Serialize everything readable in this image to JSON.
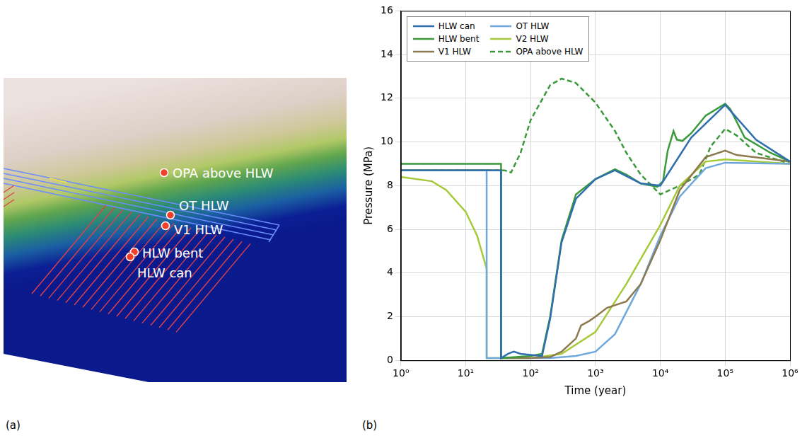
{
  "panel_a": {
    "label": "(a)",
    "points": [
      "OPA above HLW",
      "OT HLW",
      "V1 HLW",
      "HLW bent",
      "HLW can"
    ]
  },
  "panel_b": {
    "label": "(b)"
  },
  "chart_data": {
    "type": "line",
    "x_label": "Time (year)",
    "y_label": "Pressure (MPa)",
    "log": "x",
    "grid": true,
    "legend": "upper left",
    "xlim": [
      1,
      1000000
    ],
    "xticks": [
      {
        "value": 1,
        "label": "10⁰"
      },
      {
        "value": 10,
        "label": "10¹"
      },
      {
        "value": 100,
        "label": "10²"
      },
      {
        "value": 1000,
        "label": "10³"
      },
      {
        "value": 10000,
        "label": "10⁴"
      },
      {
        "value": 100000,
        "label": "10⁵"
      },
      {
        "value": 1000000,
        "label": "10⁶"
      }
    ],
    "ylim": [
      0,
      16
    ],
    "yticks": [
      0,
      2,
      4,
      6,
      8,
      10,
      12,
      14,
      16
    ],
    "series": [
      {
        "name": "HLW can",
        "color": "#2f6fae",
        "line_style": "solid",
        "x": [
          1,
          35,
          35,
          45,
          55,
          70,
          100,
          150,
          200,
          300,
          500,
          1000,
          2000,
          5000,
          10000,
          30000,
          100000,
          300000,
          1000000
        ],
        "values": [
          8.7,
          8.7,
          0.1,
          0.3,
          0.4,
          0.3,
          0.25,
          0.2,
          1.9,
          5.4,
          7.4,
          8.3,
          8.7,
          8.1,
          8.0,
          10.2,
          11.7,
          10.1,
          9.1
        ]
      },
      {
        "name": "HLW bent",
        "color": "#3a9a3a",
        "line_style": "solid",
        "x": [
          1,
          35,
          35,
          60,
          100,
          150,
          200,
          300,
          500,
          1000,
          2000,
          3000,
          5000,
          9000,
          11000,
          13000,
          16000,
          18000,
          22000,
          30000,
          50000,
          100000,
          120000,
          200000,
          500000,
          1000000
        ],
        "values": [
          9.0,
          9.0,
          0.1,
          0.15,
          0.2,
          0.3,
          2.0,
          5.5,
          7.6,
          8.3,
          8.75,
          8.5,
          8.1,
          7.95,
          8.2,
          9.6,
          10.5,
          10.1,
          10.05,
          10.4,
          11.2,
          11.75,
          11.5,
          10.2,
          9.5,
          9.1
        ]
      },
      {
        "name": "V1 HLW",
        "color": "#8c7a4e",
        "line_style": "solid",
        "x": [
          1,
          35,
          35,
          100,
          200,
          300,
          500,
          600,
          800,
          1000,
          1500,
          3000,
          5000,
          10000,
          20000,
          50000,
          100000,
          150000,
          1000000
        ],
        "values": [
          8.7,
          8.7,
          0.1,
          0.1,
          0.15,
          0.4,
          1.0,
          1.6,
          1.8,
          2.0,
          2.4,
          2.7,
          3.5,
          5.5,
          7.8,
          9.3,
          9.6,
          9.4,
          9.1
        ]
      },
      {
        "name": "OT HLW",
        "color": "#6fa8dc",
        "line_style": "solid",
        "x": [
          1,
          21,
          21,
          200,
          500,
          1000,
          2000,
          5000,
          10000,
          20000,
          50000,
          100000,
          1000000
        ],
        "values": [
          8.7,
          8.7,
          0.1,
          0.1,
          0.2,
          0.4,
          1.2,
          3.5,
          5.7,
          7.5,
          8.8,
          9.05,
          9.0
        ]
      },
      {
        "name": "V2 HLW",
        "color": "#a6c93a",
        "line_style": "solid",
        "x": [
          1,
          3,
          5,
          10,
          15,
          21,
          21,
          100,
          300,
          1000,
          3000,
          10000,
          20000,
          50000,
          100000,
          1000000
        ],
        "values": [
          8.4,
          8.2,
          7.8,
          6.8,
          5.7,
          4.2,
          0.1,
          0.1,
          0.3,
          1.3,
          3.5,
          6.2,
          8.0,
          9.1,
          9.2,
          9.0
        ]
      },
      {
        "name": "OPA above HLW",
        "color": "#3a9a3a",
        "line_style": "dashed",
        "x": [
          1,
          40,
          50,
          70,
          100,
          200,
          300,
          500,
          1000,
          2000,
          3000,
          5000,
          10000,
          20000,
          40000,
          60000,
          100000,
          150000,
          300000,
          1000000
        ],
        "values": [
          8.7,
          8.7,
          8.6,
          9.5,
          11.0,
          12.6,
          12.9,
          12.7,
          11.8,
          10.5,
          9.5,
          8.5,
          7.6,
          8.0,
          8.5,
          9.8,
          10.6,
          10.3,
          9.5,
          9.0
        ]
      }
    ]
  }
}
